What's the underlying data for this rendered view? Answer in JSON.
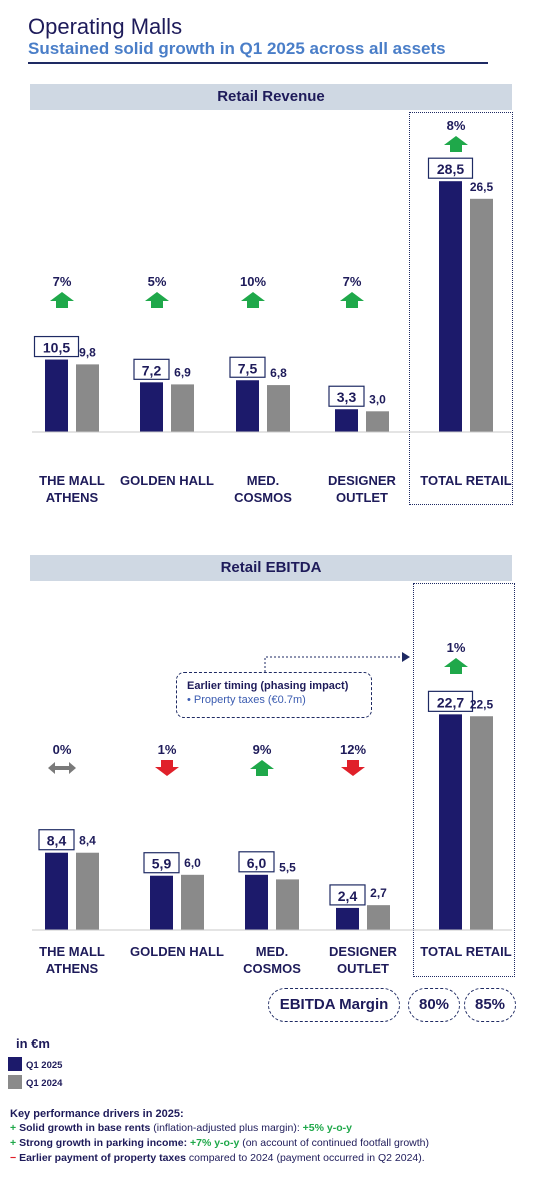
{
  "header": {
    "title": "Operating Malls",
    "subtitle": "Sustained solid growth in Q1 2025 across all assets"
  },
  "colors": {
    "q1_2025": "#1c1a6b",
    "q1_2024": "#8a8a8a",
    "up": "#1fa84a",
    "down": "#e0202a",
    "neutral": "#7a7a7a",
    "band": "#cfd8e3"
  },
  "chart_data": [
    {
      "type": "bar",
      "title": "Retail Revenue",
      "categories": [
        "THE MALL ATHENS",
        "GOLDEN HALL",
        "MED. COSMOS",
        "DESIGNER OUTLET",
        "TOTAL RETAIL"
      ],
      "category_labels": [
        [
          "THE MALL",
          "ATHENS"
        ],
        [
          "GOLDEN HALL"
        ],
        [
          "MED.",
          "COSMOS"
        ],
        [
          "DESIGNER",
          "OUTLET"
        ],
        [
          "TOTAL RETAIL"
        ]
      ],
      "series": [
        {
          "name": "Q1 2025",
          "values": [
            10.5,
            7.2,
            7.5,
            3.3,
            28.5
          ],
          "labels": [
            "10,5",
            "7,2",
            "7,5",
            "3,3",
            "28,5"
          ]
        },
        {
          "name": "Q1 2024",
          "values": [
            9.8,
            6.9,
            6.8,
            3.0,
            26.5
          ],
          "labels": [
            "9,8",
            "6,9",
            "6,8",
            "3,0",
            "26,5"
          ]
        }
      ],
      "changes": [
        "7%",
        "5%",
        "10%",
        "7%",
        "8%"
      ],
      "directions": [
        "up",
        "up",
        "up",
        "up",
        "up"
      ]
    },
    {
      "type": "bar",
      "title": "Retail EBITDA",
      "categories": [
        "THE MALL ATHENS",
        "GOLDEN HALL",
        "MED. COSMOS",
        "DESIGNER OUTLET",
        "TOTAL RETAIL"
      ],
      "category_labels": [
        [
          "THE MALL",
          "ATHENS"
        ],
        [
          "GOLDEN HALL"
        ],
        [
          "MED.",
          "COSMOS"
        ],
        [
          "DESIGNER",
          "OUTLET"
        ],
        [
          "TOTAL RETAIL"
        ]
      ],
      "series": [
        {
          "name": "Q1 2025",
          "values": [
            8.4,
            5.9,
            6.0,
            2.4,
            22.7
          ],
          "labels": [
            "8,4",
            "5,9",
            "6,0",
            "2,4",
            "22,7"
          ]
        },
        {
          "name": "Q1 2024",
          "values": [
            8.4,
            6.0,
            5.5,
            2.7,
            22.5
          ],
          "labels": [
            "8,4",
            "6,0",
            "5,5",
            "2,7",
            "22,5"
          ]
        }
      ],
      "changes": [
        "0%",
        "1%",
        "9%",
        "12%",
        "1%"
      ],
      "directions": [
        "flat",
        "down",
        "up",
        "down",
        "up"
      ]
    }
  ],
  "callout": {
    "title": "Earlier timing (phasing impact)",
    "item": "• Property taxes (€0.7m)"
  },
  "ebitda_margin": {
    "label": "EBITDA Margin",
    "q1_2025": "80%",
    "q1_2024": "85%"
  },
  "legend": {
    "title": "in €m",
    "items": [
      "Q1 2025",
      "Q1 2024"
    ]
  },
  "drivers": {
    "title": "Key performance drivers in 2025:",
    "items": [
      {
        "symbol": "+",
        "bold": "Solid growth in base rents",
        "text": " (inflation-adjusted plus margin): ",
        "highlight": "+5% y-o-y",
        "tail": ""
      },
      {
        "symbol": "+",
        "bold": "Strong growth in parking income:",
        "text": " ",
        "highlight": "+7% y-o-y",
        "tail": " (on account of continued footfall growth)"
      },
      {
        "symbol": "−",
        "bold": "Earlier payment of property taxes",
        "text": " compared to 2024 (payment occurred in Q2 2024).",
        "highlight": "",
        "tail": ""
      }
    ]
  }
}
